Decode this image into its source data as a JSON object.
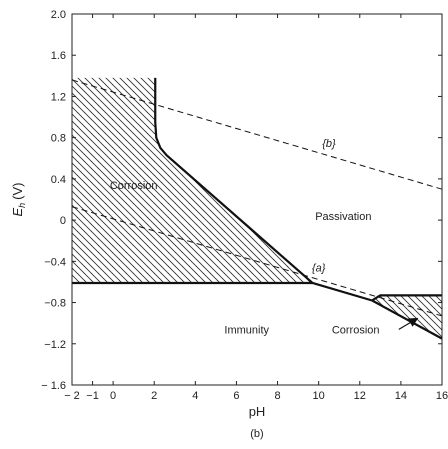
{
  "chart_data": {
    "type": "line",
    "title": "",
    "panel_label": "(b)",
    "xlabel": "pH",
    "ylabel_main": "E",
    "ylabel_sub": "h",
    "ylabel_unit": "(V)",
    "xlim": [
      -2,
      16
    ],
    "ylim": [
      -1.6,
      2.0
    ],
    "x_ticks": [
      -2,
      -1,
      0,
      2,
      4,
      6,
      8,
      10,
      12,
      14,
      16
    ],
    "x_tick_labels": [
      "− 2",
      "−1",
      "0",
      "2",
      "4",
      "6",
      "8",
      "10",
      "12",
      "14",
      "16"
    ],
    "y_ticks": [
      -1.6,
      -1.2,
      -0.8,
      -0.4,
      0,
      0.4,
      0.8,
      1.2,
      1.6,
      2.0
    ],
    "y_tick_labels": [
      "− 1.6",
      "−1.2",
      "−0.8",
      "−0.4",
      "0",
      "0.4",
      "0.8",
      "1.2",
      "1.6",
      "2.0"
    ],
    "grid": false,
    "series": [
      {
        "style": "solid-thick",
        "x": [
          2.05,
          2.05,
          2.1,
          2.3,
          2.6,
          9.7,
          12.6,
          13.0,
          16.0
        ],
        "y": [
          1.38,
          0.95,
          0.8,
          0.7,
          0.63,
          -0.61,
          -0.78,
          -0.73,
          -0.73
        ]
      },
      {
        "style": "solid-thick",
        "x": [
          -2.0,
          9.7
        ],
        "y": [
          -0.61,
          -0.61
        ]
      },
      {
        "style": "solid-thick",
        "x": [
          12.6,
          16.0
        ],
        "y": [
          -0.78,
          -1.15
        ]
      },
      {
        "style": "dashed",
        "label": "{b}",
        "x": [
          -2.0,
          16.0
        ],
        "y": [
          1.36,
          0.3
        ]
      },
      {
        "style": "dashed",
        "label": "{a}",
        "x": [
          -2.0,
          16.0
        ],
        "y": [
          0.13,
          -0.93
        ]
      }
    ],
    "regions": [
      {
        "name": "Corrosion",
        "hatched": true,
        "polygon_x": [
          -2.0,
          2.05,
          2.05,
          2.1,
          2.3,
          2.6,
          9.7,
          -2.0
        ],
        "polygon_y": [
          1.38,
          1.38,
          0.95,
          0.8,
          0.7,
          0.63,
          -0.61,
          -0.61
        ]
      },
      {
        "name": "Corrosion",
        "hatched": true,
        "polygon_x": [
          13.0,
          16.0,
          16.0,
          12.6
        ],
        "polygon_y": [
          -0.73,
          -0.73,
          -1.15,
          -0.78
        ]
      }
    ],
    "labels": {
      "corrosion_left": "Corrosion",
      "passivation": "Passivation",
      "immunity": "Immunity",
      "corrosion_right": "Corrosion",
      "line_a": "{a}",
      "line_b": "{b}"
    },
    "label_positions": {
      "corrosion_left": [
        1.0,
        0.3
      ],
      "passivation": [
        11.2,
        0.0
      ],
      "immunity": [
        6.5,
        -1.1
      ],
      "corrosion_right": [
        11.8,
        -1.1
      ],
      "line_a": [
        10.0,
        -0.5
      ],
      "line_b": [
        10.5,
        0.71
      ]
    },
    "arrow": {
      "from": [
        13.9,
        -1.06
      ],
      "to": [
        14.75,
        -0.96
      ]
    }
  }
}
